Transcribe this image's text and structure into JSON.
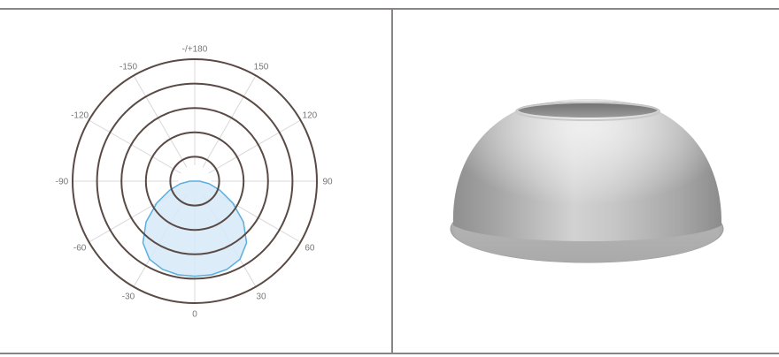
{
  "chart_data": {
    "type": "polar",
    "angle_labels": [
      {
        "deg": 180,
        "text": "-/+180"
      },
      {
        "deg": 150,
        "text": "150"
      },
      {
        "deg": -150,
        "text": "-150"
      },
      {
        "deg": 120,
        "text": "120"
      },
      {
        "deg": -120,
        "text": "-120"
      },
      {
        "deg": 90,
        "text": "90"
      },
      {
        "deg": -90,
        "text": "-90"
      },
      {
        "deg": 60,
        "text": "60"
      },
      {
        "deg": -60,
        "text": "-60"
      },
      {
        "deg": 30,
        "text": "30"
      },
      {
        "deg": -30,
        "text": "-30"
      },
      {
        "deg": 0,
        "text": "0"
      }
    ],
    "rings": 5,
    "radial_max": 1.0,
    "grid": true,
    "series": [
      {
        "fill": "#d6eaf8",
        "stroke": "#5aaee0",
        "points": [
          {
            "angle": 0,
            "r": 0.78
          },
          {
            "angle": 10,
            "r": 0.78
          },
          {
            "angle": 20,
            "r": 0.77
          },
          {
            "angle": 30,
            "r": 0.74
          },
          {
            "angle": 40,
            "r": 0.66
          },
          {
            "angle": 50,
            "r": 0.52
          },
          {
            "angle": 60,
            "r": 0.36
          },
          {
            "angle": 70,
            "r": 0.22
          },
          {
            "angle": 80,
            "r": 0.12
          },
          {
            "angle": 90,
            "r": 0.04
          },
          {
            "angle": -90,
            "r": 0.04
          },
          {
            "angle": -80,
            "r": 0.12
          },
          {
            "angle": -70,
            "r": 0.22
          },
          {
            "angle": -60,
            "r": 0.36
          },
          {
            "angle": -50,
            "r": 0.52
          },
          {
            "angle": -40,
            "r": 0.66
          },
          {
            "angle": -30,
            "r": 0.74
          },
          {
            "angle": -20,
            "r": 0.77
          },
          {
            "angle": -10,
            "r": 0.78
          }
        ]
      }
    ]
  },
  "colors": {
    "ring": "#5a4a45",
    "spoke": "#d8d8d8",
    "frame": "#8a8585"
  },
  "product_image": {
    "icon": "highbay-reflector-dome"
  }
}
